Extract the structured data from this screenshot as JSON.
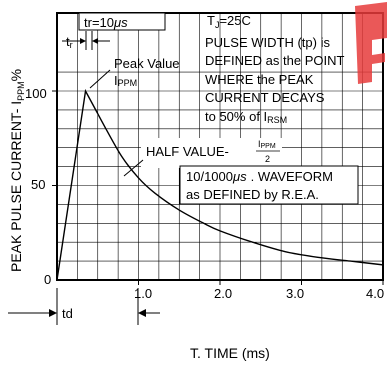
{
  "chart_data": {
    "type": "line",
    "xlabel": "T. TIME (ms)",
    "ylabel": "PEAK PULSE CURRENT- I",
    "ylabel_sub": "PPM",
    "ylabel_unit": "%",
    "xlim": [
      0,
      4.0
    ],
    "ylim": [
      0,
      115
    ],
    "x_ticks": [
      "1.0",
      "2.0",
      "3.0",
      "4.0"
    ],
    "y_ticks": [
      "0",
      "50",
      "100"
    ],
    "grid": true,
    "series": [
      {
        "x": [
          0,
          0.35,
          0.45,
          0.6,
          0.8,
          1.0,
          1.2,
          1.5,
          1.8,
          2.0,
          2.4,
          2.8,
          3.2,
          3.6,
          4.0
        ],
        "y": [
          0,
          100,
          92,
          80,
          65,
          54,
          46,
          37,
          30,
          26,
          20,
          15,
          12,
          10,
          8
        ]
      }
    ],
    "annotations": {
      "tr_label": "tr=10",
      "tr_unit": "μs",
      "tr_short": "t",
      "tr_short_sub": "r",
      "tj": "T",
      "tj_sub": "J",
      "tj_val": "=25C",
      "pulse_lines": [
        "PULSE WIDTH (tp) is",
        "DEFINED as the POINT",
        "WHERE the PEAK",
        "CURRENT DECAYS",
        "to 50% of I"
      ],
      "pulse_sub": "RSM",
      "peak_value": "Peak Value",
      "peak_i": "I",
      "peak_sub": "PPM",
      "half_value": "HALF VALUE-",
      "half_num": "I",
      "half_num_sub": "PPM",
      "half_den": "2",
      "waveform_1": "10/1000",
      "waveform_1_unit": "μs",
      "waveform_1_rest": ". WAVEFORM",
      "waveform_2": "as DEFINED by R.E.A.",
      "td": "td",
      "origin_x0": "0"
    }
  }
}
